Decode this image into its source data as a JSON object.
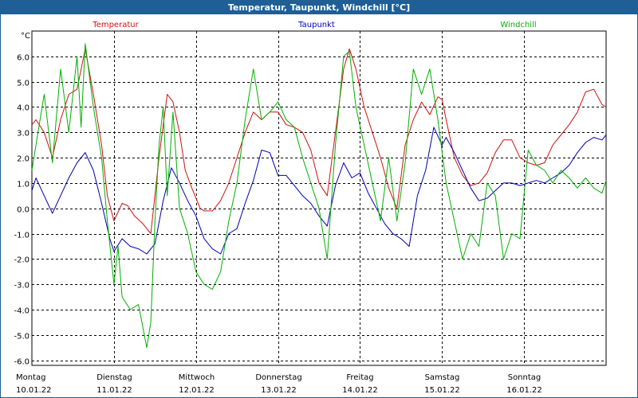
{
  "chart_data": {
    "type": "line",
    "title": "Temperatur, Taupunkt, Windchill [°C]",
    "ylabel": "°C",
    "ylim": [
      -6.2,
      7.0
    ],
    "yticks": [
      6.0,
      5.0,
      4.0,
      3.0,
      2.0,
      1.0,
      0.0,
      -1.0,
      -2.0,
      -3.0,
      -4.0,
      -5.0,
      -6.0
    ],
    "ytick_labels": [
      "6.0",
      "5.0",
      "4.0",
      "3.0",
      "2.0",
      "1.0",
      "0.0",
      "-1.0",
      "-2.0",
      "-3.0",
      "-4.0",
      "-5.0",
      "-6.0"
    ],
    "xlim": [
      0,
      7
    ],
    "grid": true,
    "days": [
      {
        "x": 0,
        "weekday": "Montag",
        "date": "10.01.22"
      },
      {
        "x": 1,
        "weekday": "Dienstag",
        "date": "11.01.22"
      },
      {
        "x": 2,
        "weekday": "Mittwoch",
        "date": "12.01.22"
      },
      {
        "x": 3,
        "weekday": "Donnerstag",
        "date": "13.01.22"
      },
      {
        "x": 4,
        "weekday": "Freitag",
        "date": "14.01.22"
      },
      {
        "x": 5,
        "weekday": "Samstag",
        "date": "15.01.22"
      },
      {
        "x": 6,
        "weekday": "Sonntag",
        "date": "16.01.22"
      }
    ],
    "series": [
      {
        "name": "Temperatur",
        "color": "#d01010",
        "x": [
          0,
          0.05,
          0.15,
          0.25,
          0.35,
          0.45,
          0.55,
          0.65,
          0.75,
          0.85,
          0.92,
          1.0,
          1.1,
          1.17,
          1.25,
          1.35,
          1.45,
          1.55,
          1.65,
          1.72,
          1.8,
          1.87,
          1.95,
          2.05,
          2.1,
          2.2,
          2.3,
          2.4,
          2.5,
          2.6,
          2.7,
          2.8,
          2.9,
          3.0,
          3.1,
          3.2,
          3.3,
          3.4,
          3.5,
          3.6,
          3.7,
          3.8,
          3.87,
          3.95,
          4.05,
          4.15,
          4.25,
          4.35,
          4.45,
          4.55,
          4.65,
          4.75,
          4.85,
          4.95,
          5.0,
          5.05,
          5.15,
          5.25,
          5.35,
          5.45,
          5.55,
          5.65,
          5.75,
          5.85,
          5.95,
          6.05,
          6.15,
          6.25,
          6.35,
          6.45,
          6.55,
          6.65,
          6.75,
          6.85,
          6.95,
          7.0
        ],
        "values": [
          3.3,
          3.5,
          3.0,
          2.0,
          3.5,
          4.5,
          4.7,
          6.3,
          4.5,
          2.5,
          0.5,
          -0.5,
          0.2,
          0.1,
          -0.3,
          -0.6,
          -1.0,
          2.0,
          4.5,
          4.2,
          3.0,
          1.5,
          0.8,
          0.0,
          -0.1,
          -0.1,
          0.3,
          1.0,
          2.0,
          3.0,
          3.8,
          3.5,
          3.8,
          3.8,
          3.3,
          3.2,
          3.0,
          2.3,
          1.0,
          0.5,
          3.0,
          5.5,
          6.3,
          5.5,
          4.0,
          3.0,
          2.0,
          0.8,
          0.0,
          2.5,
          3.5,
          4.2,
          3.7,
          4.4,
          4.3,
          3.5,
          2.0,
          1.3,
          0.9,
          1.0,
          1.4,
          2.2,
          2.7,
          2.7,
          2.0,
          1.8,
          1.7,
          1.8,
          2.5,
          2.9,
          3.3,
          3.8,
          4.6,
          4.7,
          4.1,
          4.0
        ]
      },
      {
        "name": "Taupunkt",
        "color": "#0000b0",
        "x": [
          0,
          0.05,
          0.15,
          0.25,
          0.35,
          0.45,
          0.55,
          0.65,
          0.75,
          0.85,
          0.95,
          1.0,
          1.1,
          1.2,
          1.3,
          1.4,
          1.5,
          1.6,
          1.7,
          1.8,
          1.9,
          2.0,
          2.1,
          2.2,
          2.3,
          2.4,
          2.5,
          2.6,
          2.7,
          2.8,
          2.9,
          3.0,
          3.1,
          3.2,
          3.3,
          3.4,
          3.5,
          3.6,
          3.7,
          3.8,
          3.9,
          4.0,
          4.1,
          4.2,
          4.3,
          4.4,
          4.5,
          4.6,
          4.7,
          4.8,
          4.9,
          5.0,
          5.05,
          5.15,
          5.25,
          5.35,
          5.45,
          5.55,
          5.65,
          5.75,
          5.85,
          5.95,
          6.05,
          6.15,
          6.25,
          6.35,
          6.45,
          6.55,
          6.65,
          6.75,
          6.85,
          6.95,
          7.0
        ],
        "values": [
          0.7,
          1.2,
          0.5,
          -0.2,
          0.5,
          1.2,
          1.8,
          2.2,
          1.5,
          0.2,
          -1.2,
          -1.7,
          -1.2,
          -1.5,
          -1.6,
          -1.8,
          -1.4,
          0.3,
          1.6,
          1.0,
          0.3,
          -0.3,
          -1.2,
          -1.6,
          -1.8,
          -1.0,
          -0.8,
          0.2,
          1.1,
          2.3,
          2.2,
          1.3,
          1.3,
          0.9,
          0.5,
          0.2,
          -0.3,
          -0.7,
          0.9,
          1.8,
          1.2,
          1.4,
          0.6,
          0.0,
          -0.6,
          -1.0,
          -1.2,
          -1.5,
          0.5,
          1.5,
          3.2,
          2.5,
          2.8,
          2.2,
          1.5,
          0.8,
          0.3,
          0.4,
          0.7,
          1.0,
          1.0,
          0.9,
          1.0,
          1.1,
          1.0,
          1.2,
          1.4,
          1.7,
          2.2,
          2.6,
          2.8,
          2.7,
          2.9
        ]
      },
      {
        "name": "Windchill",
        "color": "#00b000",
        "x": [
          0,
          0.05,
          0.15,
          0.25,
          0.35,
          0.45,
          0.55,
          0.6,
          0.65,
          0.75,
          0.85,
          0.92,
          1.0,
          1.05,
          1.1,
          1.2,
          1.3,
          1.4,
          1.45,
          1.5,
          1.55,
          1.6,
          1.65,
          1.72,
          1.8,
          1.9,
          2.0,
          2.1,
          2.2,
          2.3,
          2.4,
          2.5,
          2.6,
          2.7,
          2.8,
          2.9,
          3.0,
          3.1,
          3.2,
          3.3,
          3.4,
          3.5,
          3.6,
          3.7,
          3.8,
          3.87,
          3.95,
          4.05,
          4.15,
          4.25,
          4.35,
          4.45,
          4.55,
          4.65,
          4.75,
          4.85,
          4.95,
          5.05,
          5.15,
          5.25,
          5.35,
          5.45,
          5.55,
          5.65,
          5.75,
          5.85,
          5.95,
          6.05,
          6.15,
          6.25,
          6.35,
          6.45,
          6.55,
          6.65,
          6.75,
          6.85,
          6.95,
          7.0
        ],
        "values": [
          1.5,
          2.5,
          4.5,
          1.8,
          5.5,
          3.0,
          6.0,
          3.2,
          6.5,
          4.0,
          2.0,
          -0.5,
          -3.0,
          -1.5,
          -3.5,
          -4.0,
          -3.8,
          -5.5,
          -4.5,
          -0.5,
          2.5,
          4.0,
          0.5,
          3.8,
          0.0,
          -1.0,
          -2.5,
          -3.0,
          -3.2,
          -2.5,
          -0.5,
          1.0,
          3.5,
          5.5,
          3.5,
          3.8,
          4.2,
          3.5,
          3.2,
          2.0,
          1.0,
          0.0,
          -2.0,
          2.5,
          6.0,
          6.2,
          4.0,
          2.5,
          1.0,
          -0.5,
          2.0,
          -0.5,
          1.8,
          5.5,
          4.5,
          5.5,
          3.5,
          1.0,
          -0.5,
          -2.0,
          -1.0,
          -1.5,
          1.0,
          0.5,
          -2.0,
          -1.0,
          -1.2,
          2.3,
          1.7,
          1.5,
          1.0,
          1.5,
          1.2,
          0.8,
          1.2,
          0.8,
          0.6,
          1.1
        ]
      }
    ]
  }
}
